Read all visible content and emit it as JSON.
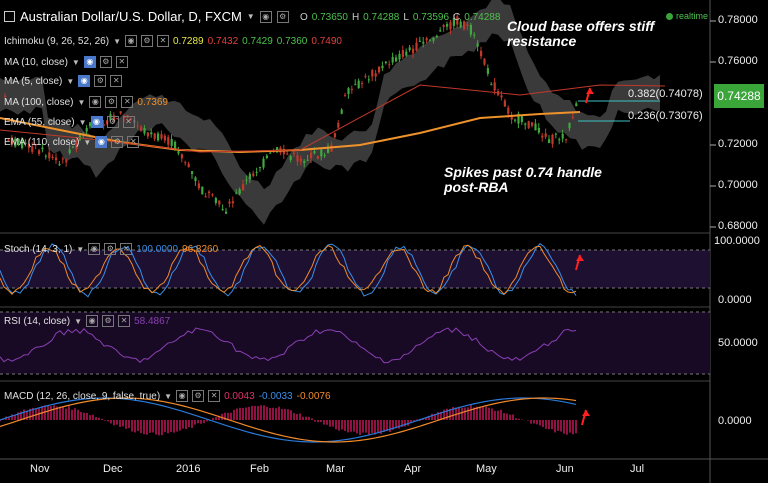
{
  "header": {
    "title": "Australian Dollar/U.S. Dollar, D, FXCM",
    "ohlc": {
      "o_label": "O",
      "o": "0.73650",
      "h_label": "H",
      "h": "0.74288",
      "l_label": "L",
      "l": "0.73596",
      "c_label": "C",
      "c": "0.74288"
    },
    "realtime": "realtime"
  },
  "indicators": {
    "ichimoku": {
      "label": "Ichimoku (9, 26, 52, 26)",
      "v1": "0.7289",
      "v2": "0.7432",
      "v3": "0.7429",
      "v4": "0.7360",
      "v5": "0.7490"
    },
    "ma10": {
      "label": "MA (10, close)"
    },
    "ma5": {
      "label": "MA (5, close)"
    },
    "ma100": {
      "label": "MA (100, close)",
      "value": "0.7369"
    },
    "ema55": {
      "label": "EMA (55, close)"
    },
    "ema110": {
      "label": "EMA (110, close)"
    },
    "stoch": {
      "label": "Stoch (14, 3, 1)",
      "k": "100.0000",
      "d": "96.8260"
    },
    "rsi": {
      "label": "RSI (14, close)",
      "value": "58.4867"
    },
    "macd": {
      "label": "MACD (12, 26, close, 9, false, true)",
      "hist": "0.0043",
      "macd": "-0.0033",
      "signal": "-0.0076"
    }
  },
  "annotations": {
    "cloud_line1": "Cloud base offers stiff",
    "cloud_line2": "resistance",
    "spike_line1": "Spikes past 0.74 handle",
    "spike_line2": "post-RBA"
  },
  "fib": {
    "f382": "0.382(0.74078)",
    "f236": "0.236(0.73076)"
  },
  "price_axis": {
    "current": "0.74288",
    "ticks": [
      "0.78000",
      "0.76000",
      "0.72000",
      "0.70000",
      "0.68000"
    ],
    "stoch_ticks": [
      "100.0000",
      "0.0000"
    ],
    "rsi_ticks": [
      "50.0000"
    ],
    "macd_ticks": [
      "0.0000"
    ]
  },
  "time_axis": [
    "Nov",
    "Dec",
    "2016",
    "Feb",
    "Mar",
    "Apr",
    "May",
    "Jun",
    "Jul"
  ],
  "colors": {
    "up": "#3fa83f",
    "down": "#c0392b",
    "ma100": "#f0922b",
    "cloud": "#6a6a6a",
    "stoch_bg": "#1e1030",
    "rsi_line": "#8a3fb5",
    "macd_line": "#2a78d8",
    "signal_line": "#f08a2b",
    "hist": "#c0185a"
  }
}
